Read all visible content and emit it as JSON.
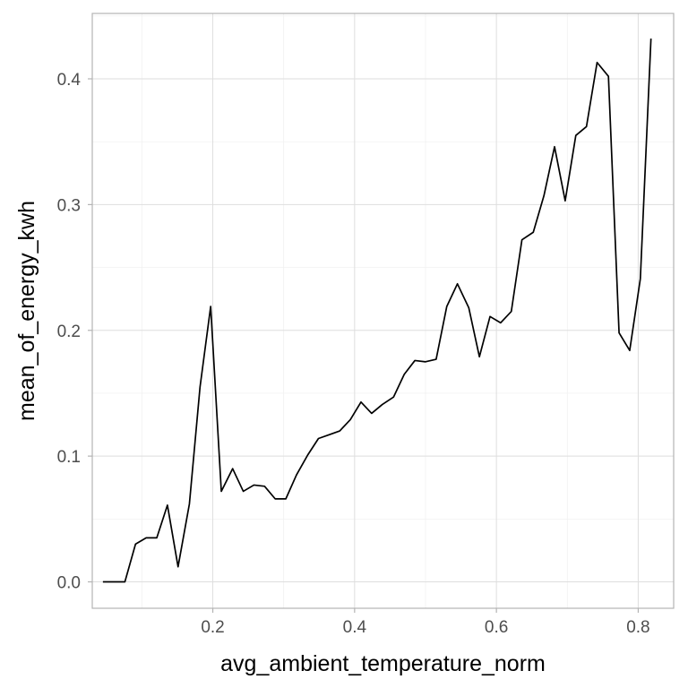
{
  "chart_data": {
    "type": "line",
    "title": "",
    "xlabel": "avg_ambient_temperature_norm",
    "ylabel": "mean_of_energy_kwh",
    "xlim": [
      0.03,
      0.85
    ],
    "ylim": [
      -0.021,
      0.452
    ],
    "x_ticks": [
      0.2,
      0.4,
      0.6,
      0.8
    ],
    "x_tick_labels": [
      "0.2",
      "0.4",
      "0.6",
      "0.8"
    ],
    "y_ticks": [
      0.0,
      0.1,
      0.2,
      0.3,
      0.4
    ],
    "y_tick_labels": [
      "0.0",
      "0.1",
      "0.2",
      "0.3",
      "0.4"
    ],
    "grid": true,
    "legend": "none",
    "line_color": "#000000",
    "x": [
      0.045,
      0.06,
      0.076,
      0.091,
      0.106,
      0.121,
      0.136,
      0.151,
      0.167,
      0.182,
      0.197,
      0.212,
      0.228,
      0.243,
      0.258,
      0.273,
      0.288,
      0.303,
      0.318,
      0.334,
      0.349,
      0.364,
      0.379,
      0.394,
      0.409,
      0.424,
      0.439,
      0.455,
      0.47,
      0.485,
      0.5,
      0.515,
      0.53,
      0.545,
      0.561,
      0.576,
      0.591,
      0.606,
      0.621,
      0.636,
      0.652,
      0.667,
      0.682,
      0.697,
      0.712,
      0.727,
      0.742,
      0.758,
      0.773,
      0.788,
      0.803,
      0.818
    ],
    "values": [
      0.0,
      0.0,
      0.0,
      0.03,
      0.035,
      0.035,
      0.061,
      0.012,
      0.062,
      0.155,
      0.219,
      0.072,
      0.09,
      0.072,
      0.077,
      0.076,
      0.066,
      0.066,
      0.085,
      0.101,
      0.114,
      0.117,
      0.12,
      0.129,
      0.143,
      0.134,
      0.141,
      0.147,
      0.165,
      0.176,
      0.175,
      0.177,
      0.219,
      0.237,
      0.218,
      0.179,
      0.211,
      0.206,
      0.215,
      0.272,
      0.278,
      0.307,
      0.346,
      0.303,
      0.355,
      0.362,
      0.413,
      0.402,
      0.198,
      0.184,
      0.241,
      0.432
    ]
  }
}
